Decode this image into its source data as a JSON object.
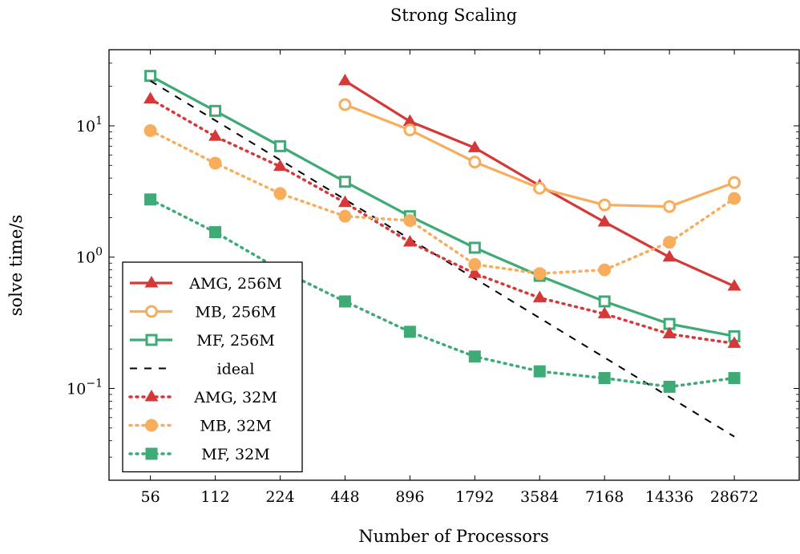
{
  "chart_data": {
    "type": "line",
    "title": "Strong Scaling",
    "xlabel": "Number of Processors",
    "ylabel": "solve time/s",
    "x_scale": "log2",
    "y_scale": "log10",
    "categories": [
      "56",
      "112",
      "224",
      "448",
      "896",
      "1792",
      "3584",
      "7168",
      "14336",
      "28672"
    ],
    "x": [
      56,
      112,
      224,
      448,
      896,
      1792,
      3584,
      7168,
      14336,
      28672
    ],
    "xlim": [
      36,
      57344
    ],
    "ylim": [
      0.02,
      38
    ],
    "y_ticks": [
      {
        "value": 0.1,
        "base": "10",
        "exp": "−1"
      },
      {
        "value": 1,
        "base": "10",
        "exp": "0"
      },
      {
        "value": 10,
        "base": "10",
        "exp": "1"
      }
    ],
    "grid": false,
    "legend_position": "bottom-left",
    "series": [
      {
        "name": "AMG, 256M",
        "color": "#d63838",
        "style": "solid",
        "marker": "triangle",
        "filled": true,
        "x": [
          448,
          896,
          1792,
          3584,
          7168,
          14336,
          28672
        ],
        "y": [
          22,
          10.8,
          6.8,
          3.5,
          1.85,
          1.0,
          0.6
        ]
      },
      {
        "name": "MB, 256M",
        "color": "#f8ad5d",
        "style": "solid",
        "marker": "circle",
        "filled": false,
        "x": [
          448,
          896,
          1792,
          3584,
          7168,
          14336,
          28672
        ],
        "y": [
          14.5,
          9.3,
          5.3,
          3.35,
          2.5,
          2.43,
          3.7
        ]
      },
      {
        "name": "MF, 256M",
        "color": "#3eaa76",
        "style": "solid",
        "marker": "square",
        "filled": false,
        "x": [
          56,
          112,
          224,
          448,
          896,
          1792,
          3584,
          7168,
          14336,
          28672
        ],
        "y": [
          24,
          13,
          7.0,
          3.75,
          2.05,
          1.18,
          0.72,
          0.46,
          0.31,
          0.25
        ]
      },
      {
        "name": "ideal",
        "color": "#000000",
        "style": "dashed",
        "marker": "none",
        "filled": false,
        "x": [
          56,
          28672
        ],
        "y": [
          22,
          0.043
        ]
      },
      {
        "name": "AMG, 32M",
        "color": "#d63838",
        "style": "dotted",
        "marker": "triangle",
        "filled": true,
        "x": [
          56,
          112,
          224,
          448,
          896,
          1792,
          3584,
          7168,
          14336,
          28672
        ],
        "y": [
          16,
          8.3,
          4.9,
          2.6,
          1.3,
          0.75,
          0.49,
          0.37,
          0.26,
          0.22
        ]
      },
      {
        "name": "MB, 32M",
        "color": "#f8ad5d",
        "style": "dotted",
        "marker": "circle",
        "filled": true,
        "x": [
          56,
          112,
          224,
          448,
          896,
          1792,
          3584,
          7168,
          14336,
          28672
        ],
        "y": [
          9.2,
          5.2,
          3.05,
          2.05,
          1.9,
          0.88,
          0.75,
          0.8,
          1.3,
          2.8
        ]
      },
      {
        "name": "MF, 32M",
        "color": "#3eaa76",
        "style": "dotted",
        "marker": "square",
        "filled": true,
        "x": [
          56,
          112,
          224,
          448,
          896,
          1792,
          3584,
          7168,
          14336,
          28672
        ],
        "y": [
          2.75,
          1.55,
          0.8,
          0.46,
          0.27,
          0.175,
          0.135,
          0.12,
          0.103,
          0.12
        ]
      }
    ]
  }
}
